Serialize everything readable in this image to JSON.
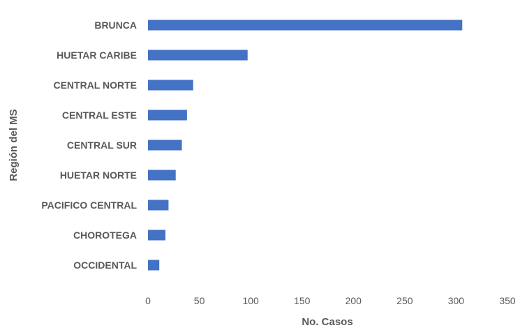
{
  "chart_data": {
    "type": "bar",
    "orientation": "horizontal",
    "categories": [
      "BRUNCA",
      "HUETAR CARIBE",
      "CENTRAL NORTE",
      "CENTRAL ESTE",
      "CENTRAL SUR",
      "HUETAR NORTE",
      "PACIFICO CENTRAL",
      "CHOROTEGA",
      "OCCIDENTAL"
    ],
    "values": [
      306,
      97,
      44,
      38,
      33,
      27,
      20,
      17,
      11
    ],
    "xlabel": "No. Casos",
    "ylabel": "Región del MS",
    "xlim": [
      0,
      350
    ],
    "xticks": [
      "0",
      "50",
      "100",
      "150",
      "200",
      "250",
      "300",
      "350"
    ],
    "grid": false,
    "legend": "none",
    "bar_color": "#4472c4"
  }
}
